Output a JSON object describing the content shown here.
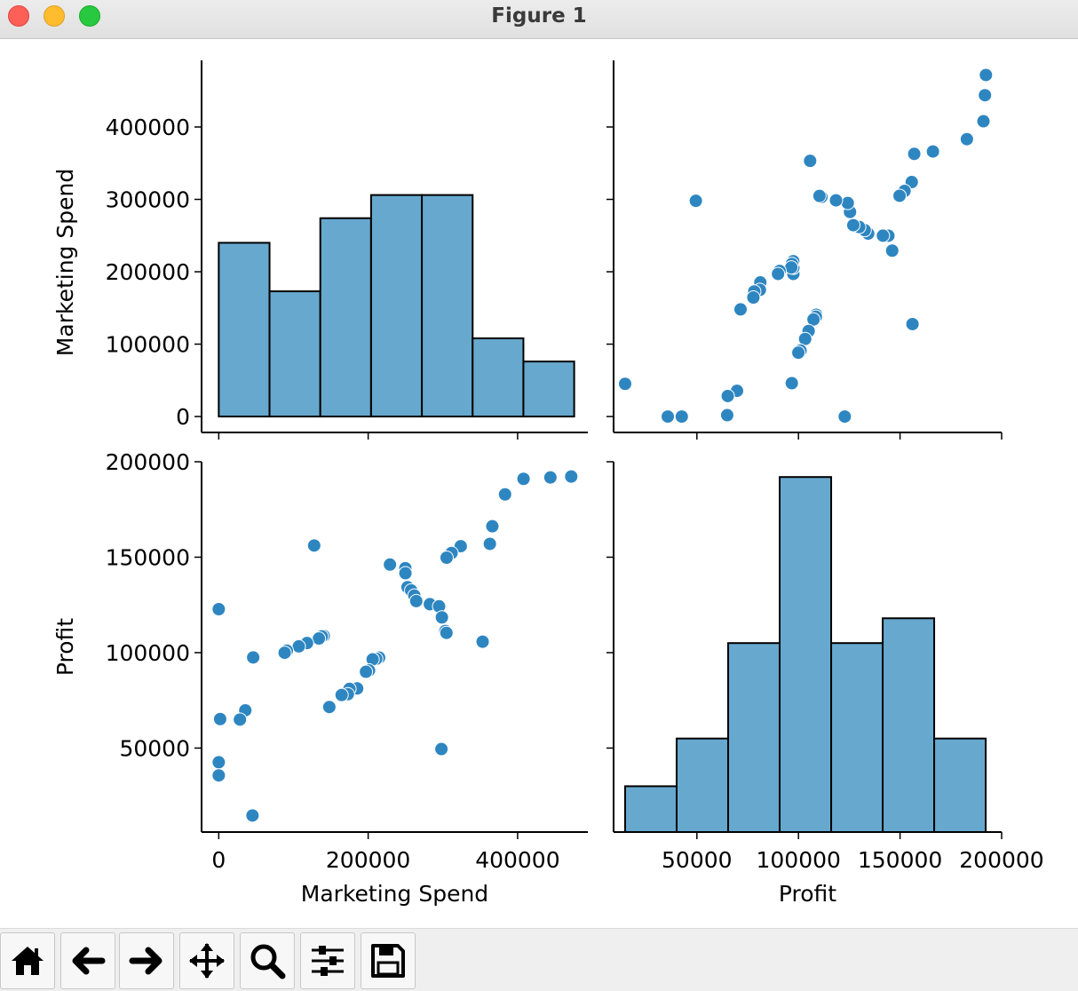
{
  "window": {
    "title": "Figure 1"
  },
  "toolbar": {
    "buttons": [
      {
        "name": "home-icon"
      },
      {
        "name": "back-arrow-icon"
      },
      {
        "name": "forward-arrow-icon"
      },
      {
        "name": "pan-move-icon"
      },
      {
        "name": "zoom-magnifier-icon"
      },
      {
        "name": "configure-subplots-icon"
      },
      {
        "name": "save-floppy-icon"
      }
    ]
  },
  "colors": {
    "marker": "#2e86c1",
    "bar": "#67a8ce",
    "edge": "#000000"
  },
  "chart_data": [
    {
      "type": "bar",
      "title": "",
      "xlabel": "",
      "ylabel": "Marketing Spend",
      "bin_edges": [
        0,
        67961,
        135922,
        203883,
        271844,
        339805,
        407766,
        475727
      ],
      "counts": [
        240000,
        173000,
        274000,
        306000,
        306000,
        108000,
        76000
      ],
      "yticks": [
        "0",
        "100000",
        "200000",
        "300000",
        "400000"
      ],
      "ylim": [
        -22000,
        492000
      ],
      "xlim": [
        -23000,
        494000
      ]
    },
    {
      "type": "scatter",
      "xlabel": "",
      "ylabel": "",
      "xlim": [
        9000,
        200000
      ],
      "ylim": [
        -22000,
        492000
      ],
      "points": [
        [
          192262,
          471784
        ],
        [
          191792,
          443899
        ],
        [
          191050,
          407935
        ],
        [
          182902,
          383200
        ],
        [
          166188,
          366168
        ],
        [
          156991,
          362861
        ],
        [
          156123,
          127717
        ],
        [
          155753,
          323877
        ],
        [
          152212,
          311613
        ],
        [
          149760,
          304981
        ],
        [
          146122,
          229161
        ],
        [
          144259,
          249745
        ],
        [
          141586,
          249839
        ],
        [
          134307,
          252665
        ],
        [
          132603,
          257498
        ],
        [
          129917,
          261776
        ],
        [
          126993,
          264346
        ],
        [
          125370,
          282574
        ],
        [
          124267,
          294920
        ],
        [
          122777,
          0
        ],
        [
          118474,
          298664
        ],
        [
          111313,
          303319
        ],
        [
          110352,
          304768
        ],
        [
          108734,
          140574
        ],
        [
          108552,
          137962
        ],
        [
          107404,
          134050
        ],
        [
          105734,
          353183
        ],
        [
          105008,
          118148
        ],
        [
          103282,
          107138
        ],
        [
          101004,
          91131
        ],
        [
          99937,
          88218
        ],
        [
          97484,
          197029
        ],
        [
          97483,
          205518
        ],
        [
          97427,
          214635
        ],
        [
          96779,
          210797
        ],
        [
          96712,
          46085
        ],
        [
          96479,
          206000
        ],
        [
          90708,
          201126
        ],
        [
          89949,
          197000
        ],
        [
          81229,
          185265
        ],
        [
          81006,
          174999
        ],
        [
          78240,
          172795
        ],
        [
          77798,
          164470
        ],
        [
          71498,
          148001
        ],
        [
          69759,
          35534
        ],
        [
          65200,
          28334
        ],
        [
          64927,
          1904
        ],
        [
          49491,
          298000
        ],
        [
          42560,
          0
        ],
        [
          35673,
          0
        ],
        [
          14681,
          45173
        ]
      ],
      "xticks": [
        "50000",
        "100000",
        "150000",
        "200000"
      ],
      "yticks": [
        "0",
        "100000",
        "200000",
        "300000",
        "400000"
      ]
    },
    {
      "type": "scatter",
      "xlabel": "Marketing Spend",
      "ylabel": "Profit",
      "xlim": [
        -23000,
        494000
      ],
      "ylim": [
        6000,
        200000
      ],
      "points": [
        [
          471784,
          192262
        ],
        [
          443899,
          191792
        ],
        [
          407935,
          191050
        ],
        [
          383200,
          182902
        ],
        [
          366168,
          166188
        ],
        [
          362861,
          156991
        ],
        [
          127717,
          156123
        ],
        [
          323877,
          155753
        ],
        [
          311613,
          152212
        ],
        [
          304981,
          149760
        ],
        [
          229161,
          146122
        ],
        [
          249745,
          144259
        ],
        [
          249839,
          141586
        ],
        [
          252665,
          134307
        ],
        [
          257498,
          132603
        ],
        [
          261776,
          129917
        ],
        [
          264346,
          126993
        ],
        [
          282574,
          125370
        ],
        [
          294920,
          124267
        ],
        [
          0,
          122777
        ],
        [
          298664,
          118474
        ],
        [
          303319,
          111313
        ],
        [
          304768,
          110352
        ],
        [
          140574,
          108734
        ],
        [
          137962,
          108552
        ],
        [
          134050,
          107404
        ],
        [
          353183,
          105734
        ],
        [
          118148,
          105008
        ],
        [
          107138,
          103282
        ],
        [
          91131,
          101004
        ],
        [
          88218,
          99937
        ],
        [
          46085,
          97484
        ],
        [
          214635,
          97427
        ],
        [
          210797,
          96779
        ],
        [
          205518,
          96712
        ],
        [
          206000,
          96479
        ],
        [
          201126,
          90708
        ],
        [
          197029,
          89949
        ],
        [
          185265,
          81229
        ],
        [
          174999,
          81006
        ],
        [
          172795,
          78240
        ],
        [
          164470,
          77798
        ],
        [
          148001,
          71498
        ],
        [
          35534,
          69759
        ],
        [
          1904,
          65200
        ],
        [
          28334,
          64927
        ],
        [
          298000,
          49491
        ],
        [
          0,
          42560
        ],
        [
          0,
          35673
        ],
        [
          45173,
          14681
        ]
      ],
      "xticks": [
        "0",
        "200000",
        "400000"
      ],
      "yticks": [
        "50000",
        "100000",
        "150000",
        "200000"
      ]
    },
    {
      "type": "bar",
      "xlabel": "Profit",
      "ylabel": "",
      "bin_edges": [
        14681,
        40035,
        65389,
        90743,
        116097,
        141451,
        166805,
        192159
      ],
      "counts": [
        30000,
        55000,
        105000,
        192000,
        105000,
        118000,
        55000
      ],
      "xticks": [
        "50000",
        "100000",
        "150000",
        "200000"
      ],
      "xlim": [
        9000,
        200000
      ],
      "ylim": [
        6000,
        200000
      ]
    }
  ]
}
